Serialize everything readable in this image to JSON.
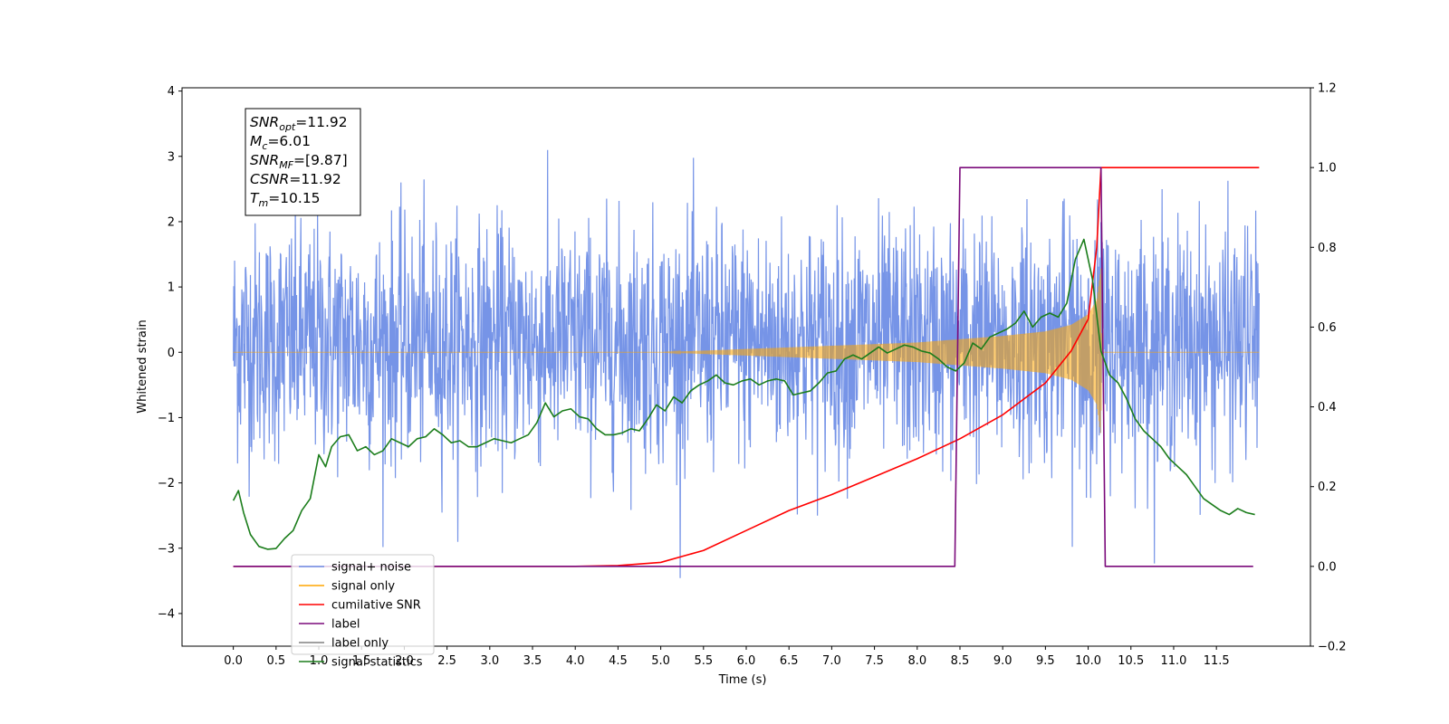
{
  "chart_data": {
    "type": "line",
    "xlabel": "Time (s)",
    "ylabel": "Whitened strain",
    "xlim": [
      -0.6,
      12.6
    ],
    "ylim": [
      -4.5,
      4.05
    ],
    "y2lim": [
      -0.2,
      1.2
    ],
    "xticks": [
      0.0,
      0.5,
      1.0,
      1.5,
      2.0,
      2.5,
      3.0,
      3.5,
      4.0,
      4.5,
      5.0,
      5.5,
      6.0,
      6.5,
      7.0,
      7.5,
      8.0,
      8.5,
      9.0,
      9.5,
      10.0,
      10.5,
      11.0,
      11.5
    ],
    "xtick_labels": [
      "0.0",
      "0.5",
      "1.0",
      "1.5",
      "2.0",
      "2.5",
      "3.0",
      "3.5",
      "4.0",
      "4.5",
      "5.0",
      "5.5",
      "6.0",
      "6.5",
      "7.0",
      "7.5",
      "8.0",
      "8.5",
      "9.0",
      "9.5",
      "10.0",
      "10.5",
      "11.0",
      "11.5"
    ],
    "yticks": [
      -4,
      -3,
      -2,
      -1,
      0,
      1,
      2,
      3,
      4
    ],
    "ytick_labels": [
      "−4",
      "−3",
      "−2",
      "−1",
      "0",
      "1",
      "2",
      "3",
      "4"
    ],
    "y2ticks": [
      -0.2,
      0.0,
      0.2,
      0.4,
      0.6,
      0.8,
      1.0,
      1.2
    ],
    "y2tick_labels": [
      "−0.2",
      "0.0",
      "0.2",
      "0.4",
      "0.6",
      "0.8",
      "1.0",
      "1.2"
    ],
    "legend_position": "lower-left",
    "annotation": {
      "lines": [
        {
          "main": "SNR",
          "sub": "opt",
          "rest": "=11.92"
        },
        {
          "main": "M",
          "sub": "c",
          "rest": "=6.01"
        },
        {
          "main": "SNR",
          "sub": "MF",
          "rest": "=[9.87]"
        },
        {
          "main": "CSNR",
          "sub": "",
          "rest": "=11.92"
        },
        {
          "main": "T",
          "sub": "m",
          "rest": "=10.15"
        }
      ]
    },
    "series": [
      {
        "name": "signal+ noise",
        "axis": "left",
        "color": "#6f8ee6",
        "kind": "noisy_band",
        "x_range": [
          0.0,
          12.0
        ],
        "sigma": 0.9,
        "typical_range": [
          -2.3,
          2.5
        ],
        "peak_range": [
          -4.1,
          3.65
        ]
      },
      {
        "name": "signal only",
        "axis": "left",
        "color": "#ffa500",
        "kind": "chirp_envelope",
        "envelope": {
          "x": [
            0.0,
            5.0,
            6.0,
            7.0,
            8.0,
            8.5,
            9.0,
            9.5,
            9.8,
            10.0,
            10.1,
            10.15,
            10.16,
            12.0
          ],
          "y": [
            0.0,
            0.0,
            0.05,
            0.1,
            0.15,
            0.2,
            0.25,
            0.32,
            0.42,
            0.58,
            0.8,
            1.3,
            0.0,
            0.0
          ]
        }
      },
      {
        "name": "cumilative SNR",
        "axis": "right",
        "color": "#ff0000",
        "x": [
          0.0,
          4.0,
          4.5,
          5.0,
          5.5,
          6.0,
          6.5,
          7.0,
          7.5,
          8.0,
          8.5,
          9.0,
          9.5,
          9.8,
          10.0,
          10.1,
          10.15,
          12.0
        ],
        "y": [
          0.0,
          0.0,
          0.002,
          0.01,
          0.04,
          0.09,
          0.14,
          0.18,
          0.225,
          0.27,
          0.32,
          0.38,
          0.46,
          0.54,
          0.62,
          0.8,
          1.0,
          1.0
        ]
      },
      {
        "name": "label",
        "axis": "right",
        "color": "#7b0a7b",
        "x": [
          0.0,
          8.44,
          8.5,
          10.15,
          10.2,
          11.93
        ],
        "y": [
          0.0,
          0.0,
          1.0,
          1.0,
          0.0,
          0.0
        ]
      },
      {
        "name": "label only",
        "axis": "right",
        "color": "#808080",
        "x": [],
        "y": []
      },
      {
        "name": "signal statistics",
        "axis": "right",
        "color": "#1b7d1b",
        "x": [
          0.0,
          0.06,
          0.12,
          0.2,
          0.3,
          0.4,
          0.5,
          0.6,
          0.7,
          0.8,
          0.9,
          1.0,
          1.08,
          1.15,
          1.25,
          1.35,
          1.45,
          1.55,
          1.65,
          1.75,
          1.85,
          1.95,
          2.05,
          2.15,
          2.25,
          2.35,
          2.45,
          2.55,
          2.65,
          2.75,
          2.85,
          2.95,
          3.05,
          3.15,
          3.25,
          3.35,
          3.45,
          3.55,
          3.65,
          3.75,
          3.85,
          3.95,
          4.05,
          4.15,
          4.25,
          4.35,
          4.45,
          4.55,
          4.65,
          4.75,
          4.85,
          4.95,
          5.05,
          5.15,
          5.25,
          5.35,
          5.45,
          5.55,
          5.65,
          5.75,
          5.85,
          5.95,
          6.05,
          6.15,
          6.25,
          6.35,
          6.45,
          6.55,
          6.65,
          6.75,
          6.85,
          6.95,
          7.05,
          7.15,
          7.25,
          7.35,
          7.45,
          7.55,
          7.65,
          7.75,
          7.85,
          7.95,
          8.05,
          8.15,
          8.25,
          8.35,
          8.45,
          8.55,
          8.65,
          8.75,
          8.85,
          8.95,
          9.05,
          9.15,
          9.25,
          9.35,
          9.45,
          9.55,
          9.65,
          9.75,
          9.85,
          9.95,
          10.05,
          10.15,
          10.25,
          10.35,
          10.45,
          10.55,
          10.65,
          10.75,
          10.85,
          10.95,
          11.05,
          11.15,
          11.25,
          11.35,
          11.45,
          11.55,
          11.65,
          11.75,
          11.85,
          11.95
        ],
        "y": [
          0.165,
          0.19,
          0.135,
          0.08,
          0.05,
          0.043,
          0.045,
          0.07,
          0.09,
          0.14,
          0.17,
          0.28,
          0.25,
          0.3,
          0.325,
          0.33,
          0.29,
          0.3,
          0.28,
          0.29,
          0.32,
          0.31,
          0.3,
          0.32,
          0.325,
          0.345,
          0.33,
          0.31,
          0.315,
          0.3,
          0.3,
          0.31,
          0.32,
          0.315,
          0.31,
          0.32,
          0.33,
          0.36,
          0.41,
          0.375,
          0.39,
          0.395,
          0.375,
          0.37,
          0.345,
          0.33,
          0.33,
          0.335,
          0.345,
          0.34,
          0.37,
          0.405,
          0.39,
          0.425,
          0.41,
          0.44,
          0.455,
          0.465,
          0.48,
          0.46,
          0.455,
          0.465,
          0.47,
          0.455,
          0.465,
          0.47,
          0.465,
          0.43,
          0.435,
          0.44,
          0.46,
          0.485,
          0.49,
          0.52,
          0.53,
          0.52,
          0.535,
          0.55,
          0.535,
          0.545,
          0.555,
          0.55,
          0.54,
          0.535,
          0.52,
          0.5,
          0.49,
          0.51,
          0.56,
          0.545,
          0.575,
          0.585,
          0.595,
          0.61,
          0.64,
          0.6,
          0.625,
          0.635,
          0.625,
          0.66,
          0.77,
          0.82,
          0.72,
          0.54,
          0.48,
          0.46,
          0.42,
          0.37,
          0.34,
          0.32,
          0.3,
          0.27,
          0.25,
          0.23,
          0.2,
          0.17,
          0.155,
          0.14,
          0.13,
          0.145,
          0.135,
          0.13
        ]
      }
    ]
  }
}
